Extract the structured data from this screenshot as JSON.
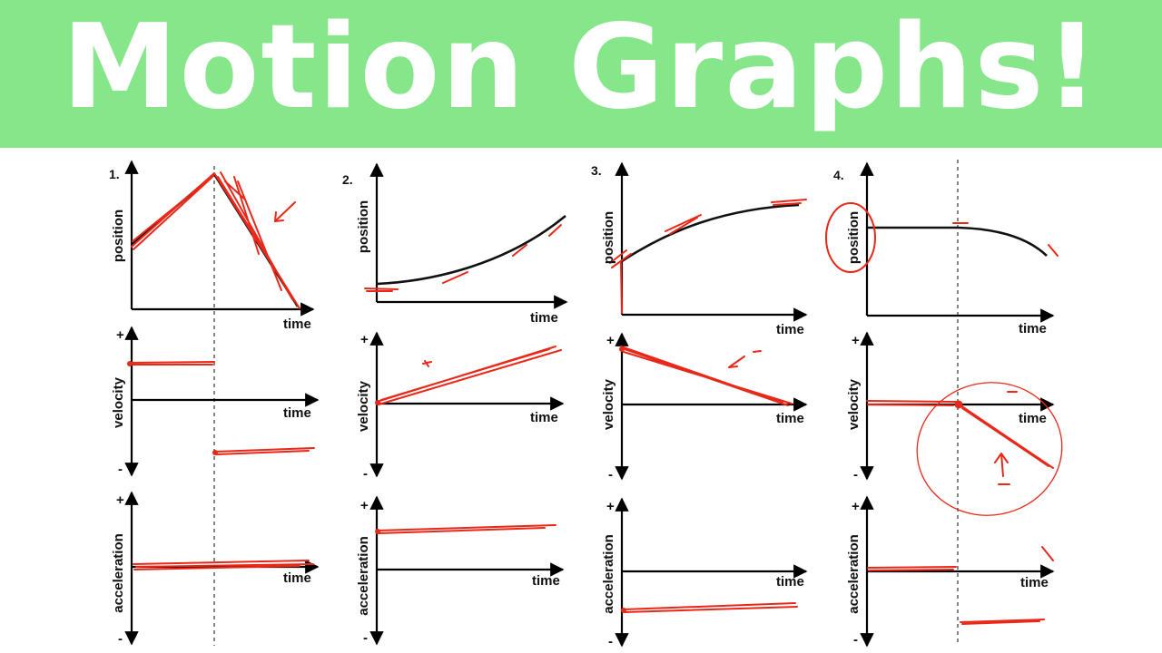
{
  "banner": {
    "title": "Motion Graphs!",
    "background_color": "#86e68a",
    "text_color": "#ffffff"
  },
  "ink_color": "#e8291a",
  "problems": [
    {
      "number": "1.",
      "panels": [
        {
          "ylabel": "position",
          "xlabel": "time"
        },
        {
          "ylabel": "velocity",
          "xlabel": "time",
          "plus": "+",
          "minus": "-"
        },
        {
          "ylabel": "acceleration",
          "xlabel": "time",
          "plus": "+",
          "minus": "-"
        }
      ]
    },
    {
      "number": "2.",
      "panels": [
        {
          "ylabel": "position",
          "xlabel": "time"
        },
        {
          "ylabel": "velocity",
          "xlabel": "time",
          "plus": "+",
          "minus": "-"
        },
        {
          "ylabel": "acceleration",
          "xlabel": "time",
          "plus": "+",
          "minus": "-"
        }
      ]
    },
    {
      "number": "3.",
      "panels": [
        {
          "ylabel": "position",
          "xlabel": "time"
        },
        {
          "ylabel": "velocity",
          "xlabel": "time",
          "plus": "+",
          "minus": "-"
        },
        {
          "ylabel": "acceleration",
          "xlabel": "time",
          "plus": "+",
          "minus": "-"
        }
      ]
    },
    {
      "number": "4.",
      "panels": [
        {
          "ylabel": "position",
          "xlabel": "time"
        },
        {
          "ylabel": "velocity",
          "xlabel": "time",
          "plus": "+",
          "minus": "-"
        },
        {
          "ylabel": "acceleration",
          "xlabel": "time",
          "plus": "+",
          "minus": "-"
        }
      ]
    }
  ]
}
